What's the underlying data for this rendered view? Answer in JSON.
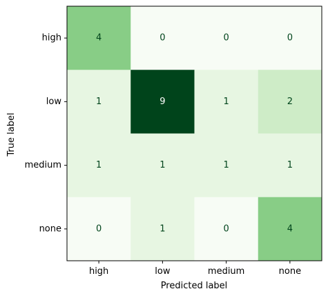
{
  "chart_data": {
    "type": "heatmap",
    "title": "",
    "xlabel": "Predicted label",
    "ylabel": "True label",
    "x_categories": [
      "high",
      "low",
      "medium",
      "none"
    ],
    "y_categories": [
      "high",
      "low",
      "medium",
      "none"
    ],
    "values": [
      [
        4,
        0,
        0,
        0
      ],
      [
        1,
        9,
        1,
        2
      ],
      [
        1,
        1,
        1,
        1
      ],
      [
        0,
        1,
        0,
        4
      ]
    ],
    "colormap": "Greens",
    "vmin": 0,
    "vmax": 9,
    "grid": false,
    "text_color_light": "#ffffff",
    "text_color_dark": "#00441b",
    "axis_color": "#000000"
  }
}
